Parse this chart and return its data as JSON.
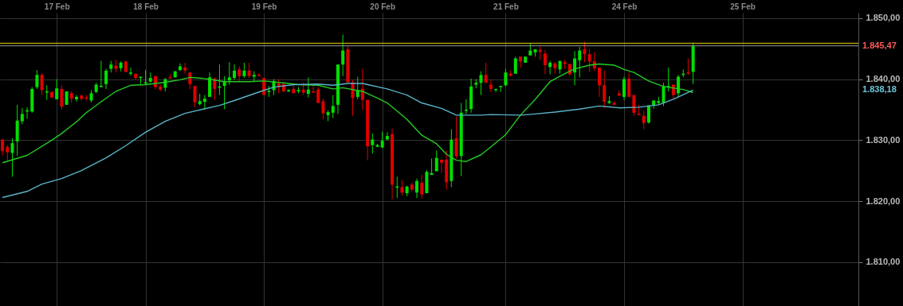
{
  "chart_data": {
    "type": "candlestick",
    "categories": [
      null,
      null,
      null,
      null,
      null,
      null,
      null,
      null,
      null,
      null,
      null,
      "17 Feb",
      null,
      null,
      null,
      null,
      null,
      null,
      null,
      null,
      null,
      null,
      null,
      null,
      null,
      null,
      null,
      null,
      null,
      "18 Feb",
      null,
      null,
      null,
      null,
      null,
      null,
      null,
      null,
      null,
      null,
      null,
      null,
      null,
      null,
      null,
      null,
      null,
      null,
      null,
      null,
      null,
      null,
      null,
      "19 Feb",
      null,
      null,
      null,
      null,
      null,
      null,
      null,
      null,
      null,
      null,
      null,
      null,
      null,
      null,
      null,
      null,
      null,
      null,
      null,
      null,
      null,
      null,
      null,
      "20 Feb",
      null,
      null,
      null,
      null,
      null,
      null,
      null,
      null,
      null,
      null,
      null,
      null,
      null,
      null,
      null,
      null,
      null,
      null,
      null,
      null,
      null,
      null,
      null,
      null,
      "21 Feb",
      null,
      null,
      null,
      null,
      null,
      null,
      null,
      null,
      null,
      null,
      null,
      null,
      null,
      null,
      null,
      null,
      null,
      null,
      null,
      null,
      null,
      null,
      null,
      "24 Feb",
      null,
      null,
      null,
      null,
      null,
      null,
      null,
      null,
      null,
      null,
      null,
      null,
      null,
      null,
      null,
      null,
      null,
      null,
      null,
      null,
      null,
      null,
      null,
      "25 Feb",
      null,
      null,
      null,
      null,
      null,
      null,
      null,
      null,
      null,
      null,
      null,
      null,
      null,
      null,
      null,
      null,
      null,
      null,
      null,
      null,
      null,
      null,
      null
    ],
    "ohlc": [
      [
        1830.1,
        1830.2,
        1827.5,
        1828.2
      ],
      [
        1828.9,
        1829.2,
        1826.7,
        1828.0
      ],
      [
        1827.9,
        1830.3,
        1824.0,
        1829.5
      ],
      [
        1829.8,
        1835.8,
        1827.4,
        1833.2
      ],
      [
        1833.1,
        1835.3,
        1832.6,
        1834.3
      ],
      [
        1834.7,
        1835.4,
        1833.5,
        1834.9
      ],
      [
        1834.7,
        1838.7,
        1834.5,
        1838.4
      ],
      [
        1838.7,
        1841.5,
        1838.4,
        1840.7
      ],
      [
        1840.7,
        1841.0,
        1837.4,
        1838.2
      ],
      [
        1837.8,
        1839.0,
        1836.6,
        1838.0
      ],
      [
        1837.9,
        1838.0,
        1836.9,
        1837.0
      ],
      [
        1836.7,
        1840.0,
        1836.7,
        1838.5
      ],
      [
        1838.4,
        1839.0,
        1835.0,
        1835.5
      ],
      [
        1835.8,
        1838.0,
        1835.8,
        1838.0
      ],
      [
        1837.7,
        1838.0,
        1836.1,
        1836.8
      ],
      [
        1836.7,
        1837.4,
        1836.3,
        1837.1
      ],
      [
        1837.3,
        1837.5,
        1836.5,
        1836.8
      ],
      [
        1837.0,
        1837.4,
        1836.5,
        1836.8
      ],
      [
        1836.5,
        1838.2,
        1836.2,
        1837.7
      ],
      [
        1837.9,
        1839.4,
        1837.7,
        1839.1
      ],
      [
        1838.7,
        1843.0,
        1838.7,
        1838.9
      ],
      [
        1839.2,
        1841.7,
        1838.4,
        1841.4
      ],
      [
        1841.7,
        1843.0,
        1841.1,
        1842.4
      ],
      [
        1842.2,
        1843.2,
        1841.1,
        1841.7
      ],
      [
        1841.8,
        1842.9,
        1841.3,
        1842.7
      ],
      [
        1842.9,
        1843.0,
        1841.1,
        1841.2
      ],
      [
        1840.9,
        1841.9,
        1840.6,
        1841.1
      ],
      [
        1840.9,
        1840.9,
        1839.9,
        1840.2
      ],
      [
        1840.2,
        1840.4,
        1839.2,
        1840.4
      ],
      [
        1839.3,
        1841.5,
        1839.2,
        1839.5
      ],
      [
        1839.6,
        1841.1,
        1839.4,
        1840.2
      ],
      [
        1840.5,
        1840.5,
        1838.3,
        1838.7
      ],
      [
        1838.8,
        1839.1,
        1838.0,
        1838.3
      ],
      [
        1838.6,
        1840.2,
        1838.0,
        1840.0
      ],
      [
        1840.3,
        1840.8,
        1840.1,
        1840.1
      ],
      [
        1840.3,
        1841.3,
        1840.3,
        1841.3
      ],
      [
        1841.5,
        1842.6,
        1841.3,
        1842.1
      ],
      [
        1841.9,
        1842.7,
        1840.9,
        1841.4
      ],
      [
        1841.1,
        1841.1,
        1838.4,
        1839.2
      ],
      [
        1838.9,
        1838.9,
        1835.4,
        1836.2
      ],
      [
        1835.9,
        1837.6,
        1835.7,
        1836.4
      ],
      [
        1836.3,
        1837.4,
        1835.0,
        1836.8
      ],
      [
        1837.1,
        1841.1,
        1837.1,
        1840.3
      ],
      [
        1840.1,
        1840.3,
        1836.6,
        1838.4
      ],
      [
        1838.6,
        1842.4,
        1837.4,
        1838.8
      ],
      [
        1838.9,
        1840.5,
        1835.1,
        1839.7
      ],
      [
        1839.8,
        1842.8,
        1839.1,
        1840.3
      ],
      [
        1840.2,
        1842.4,
        1839.9,
        1841.4
      ],
      [
        1841.6,
        1842.1,
        1839.6,
        1840.5
      ],
      [
        1840.5,
        1842.7,
        1840.2,
        1841.4
      ],
      [
        1841.4,
        1842.7,
        1840.2,
        1840.5
      ],
      [
        1840.4,
        1841.3,
        1839.7,
        1840.7
      ],
      [
        1840.7,
        1841.0,
        1840.5,
        1840.5
      ],
      [
        1840.2,
        1840.2,
        1837.4,
        1837.4
      ],
      [
        1837.9,
        1838.9,
        1837.1,
        1838.1
      ],
      [
        1838.2,
        1840.0,
        1837.4,
        1839.7
      ],
      [
        1839.3,
        1840.0,
        1837.7,
        1838.7
      ],
      [
        1839.2,
        1839.2,
        1837.9,
        1838.0
      ],
      [
        1838.0,
        1838.4,
        1837.9,
        1838.2
      ],
      [
        1838.4,
        1839.0,
        1837.7,
        1837.7
      ],
      [
        1838.0,
        1838.7,
        1837.7,
        1838.2
      ],
      [
        1838.3,
        1839.4,
        1837.4,
        1837.8
      ],
      [
        1837.6,
        1840.3,
        1837.0,
        1838.3
      ],
      [
        1838.0,
        1839.0,
        1837.8,
        1837.8
      ],
      [
        1838.3,
        1838.7,
        1836.1,
        1836.1
      ],
      [
        1836.4,
        1836.8,
        1833.4,
        1834.4
      ],
      [
        1834.1,
        1834.9,
        1833.1,
        1834.6
      ],
      [
        1834.5,
        1837.4,
        1833.6,
        1835.6
      ],
      [
        1835.8,
        1842.4,
        1834.3,
        1842.4
      ],
      [
        1842.4,
        1847.3,
        1840.5,
        1844.7
      ],
      [
        1844.9,
        1845.4,
        1839.5,
        1839.5
      ],
      [
        1839.5,
        1839.9,
        1834.0,
        1836.9
      ],
      [
        1837.1,
        1840.4,
        1836.7,
        1838.2
      ],
      [
        1838.4,
        1841.7,
        1834.9,
        1836.6
      ],
      [
        1836.6,
        1836.6,
        1826.7,
        1829.0
      ],
      [
        1829.2,
        1831.1,
        1827.8,
        1830.1
      ],
      [
        1828.9,
        1829.4,
        1828.9,
        1829.2
      ],
      [
        1828.8,
        1831.4,
        1828.7,
        1829.9
      ],
      [
        1830.1,
        1831.3,
        1830.1,
        1830.7
      ],
      [
        1831.0,
        1831.9,
        1820.3,
        1822.7
      ],
      [
        1822.2,
        1824.0,
        1820.5,
        1822.4
      ],
      [
        1822.3,
        1823.4,
        1820.9,
        1821.4
      ],
      [
        1821.3,
        1822.5,
        1820.8,
        1822.4
      ],
      [
        1822.7,
        1823.0,
        1821.6,
        1821.9
      ],
      [
        1821.4,
        1823.7,
        1820.5,
        1823.3
      ],
      [
        1823.0,
        1824.3,
        1820.4,
        1821.1
      ],
      [
        1821.3,
        1825.1,
        1821.3,
        1824.8
      ],
      [
        1824.3,
        1827.0,
        1824.3,
        1824.6
      ],
      [
        1824.9,
        1828.3,
        1824.9,
        1827.1
      ],
      [
        1826.8,
        1826.8,
        1824.6,
        1826.3
      ],
      [
        1826.8,
        1828.3,
        1821.9,
        1823.1
      ],
      [
        1823.3,
        1831.8,
        1822.3,
        1830.1
      ],
      [
        1830.3,
        1833.9,
        1827.0,
        1827.4
      ],
      [
        1827.4,
        1836.1,
        1824.1,
        1834.5
      ],
      [
        1834.8,
        1836.7,
        1834.3,
        1835.0
      ],
      [
        1835.1,
        1840.1,
        1834.5,
        1838.8
      ],
      [
        1839.1,
        1840.0,
        1838.5,
        1839.4
      ],
      [
        1839.4,
        1841.3,
        1837.4,
        1840.7
      ],
      [
        1840.7,
        1842.7,
        1839.4,
        1839.4
      ],
      [
        1839.1,
        1839.9,
        1837.9,
        1838.4
      ],
      [
        1838.2,
        1838.4,
        1837.9,
        1838.4
      ],
      [
        1838.7,
        1838.9,
        1837.9,
        1838.9
      ],
      [
        1839.0,
        1841.7,
        1838.8,
        1841.1
      ],
      [
        1840.9,
        1841.4,
        1840.4,
        1840.6
      ],
      [
        1840.9,
        1843.7,
        1840.9,
        1843.4
      ],
      [
        1843.7,
        1843.7,
        1841.9,
        1842.9
      ],
      [
        1842.7,
        1843.7,
        1842.7,
        1843.7
      ],
      [
        1843.9,
        1845.9,
        1843.9,
        1844.7
      ],
      [
        1844.4,
        1844.9,
        1843.7,
        1844.9
      ],
      [
        1844.8,
        1845.3,
        1843.2,
        1844.5
      ],
      [
        1844.2,
        1844.8,
        1840.8,
        1842.3
      ],
      [
        1842.0,
        1843.0,
        1840.8,
        1842.7
      ],
      [
        1842.6,
        1842.8,
        1840.9,
        1841.8
      ],
      [
        1841.6,
        1843.0,
        1840.9,
        1843.0
      ],
      [
        1842.8,
        1843.2,
        1841.7,
        1842.5
      ],
      [
        1842.5,
        1842.5,
        1840.5,
        1840.8
      ],
      [
        1841.1,
        1844.6,
        1839.0,
        1843.4
      ],
      [
        1843.1,
        1845.3,
        1840.3,
        1844.7
      ],
      [
        1844.9,
        1846.1,
        1842.8,
        1844.1
      ],
      [
        1844.1,
        1845.0,
        1841.2,
        1842.9
      ],
      [
        1842.9,
        1844.4,
        1841.3,
        1841.8
      ],
      [
        1841.9,
        1841.9,
        1837.1,
        1839.0
      ],
      [
        1839.0,
        1841.4,
        1835.3,
        1836.3
      ],
      [
        1836.1,
        1837.2,
        1835.9,
        1836.4
      ],
      [
        1836.1,
        1836.4,
        1835.8,
        1835.8
      ],
      [
        1837.7,
        1838.2,
        1837.3,
        1837.3
      ],
      [
        1837.1,
        1840.4,
        1836.6,
        1840.0
      ],
      [
        1840.1,
        1841.1,
        1837.1,
        1837.1
      ],
      [
        1837.4,
        1837.4,
        1834.0,
        1834.5
      ],
      [
        1834.3,
        1835.8,
        1834.1,
        1834.1
      ],
      [
        1834.0,
        1834.8,
        1831.8,
        1832.8
      ],
      [
        1832.9,
        1835.7,
        1832.7,
        1835.7
      ],
      [
        1835.7,
        1836.5,
        1835.1,
        1836.5
      ],
      [
        1836.1,
        1837.1,
        1835.8,
        1836.4
      ],
      [
        1836.1,
        1839.4,
        1835.6,
        1838.9
      ],
      [
        1838.7,
        1841.9,
        1838.0,
        1838.9
      ],
      [
        1839.1,
        1839.1,
        1836.7,
        1837.4
      ],
      [
        1837.7,
        1840.7,
        1837.1,
        1840.4
      ],
      [
        1840.7,
        1841.6,
        1840.3,
        1840.9
      ],
      [
        1841.1,
        1843.4,
        1840.7,
        1840.9
      ],
      [
        1841.2,
        1846.0,
        1839.2,
        1845.47
      ],
      null,
      null,
      null,
      null,
      null,
      null,
      null,
      null,
      null,
      null,
      null,
      null,
      null,
      null,
      null,
      null,
      null,
      null,
      null,
      null,
      null,
      null,
      null,
      null,
      null,
      null,
      null,
      null,
      null,
      null,
      null,
      null,
      null
    ],
    "colors": [
      "#e00000",
      "#e00000",
      "#00e000",
      "#00e000",
      "#00e000",
      "#00e000",
      "#00e000",
      "#00e000",
      "#e00000",
      "#00e000",
      "#e00000",
      "#00e000",
      "#e00000",
      "#00e000",
      "#e00000",
      "#00e000",
      "#e00000",
      "#e00000",
      "#00e000",
      "#00e000",
      "#00e000",
      "#00e000",
      "#00e000",
      "#e00000",
      "#00e000",
      "#e00000",
      "#00e000",
      "#e00000",
      "#00e000",
      "#00e000",
      "#00e000",
      "#e00000",
      "#e00000",
      "#00e000",
      "#e00000",
      "#00e000",
      "#00e000",
      "#e00000",
      "#e00000",
      "#e00000",
      "#00e000",
      "#00e000",
      "#00e000",
      "#e00000",
      "#00e000",
      "#00e000",
      "#00e000",
      "#00e000",
      "#e00000",
      "#00e000",
      "#e00000",
      "#00e000",
      "#e00000",
      "#e00000",
      "#00e000",
      "#00e000",
      "#e00000",
      "#e00000",
      "#00e000",
      "#e00000",
      "#00e000",
      "#e00000",
      "#00e000",
      "#e00000",
      "#e00000",
      "#e00000",
      "#00e000",
      "#00e000",
      "#00e000",
      "#00e000",
      "#e00000",
      "#e00000",
      "#00e000",
      "#e00000",
      "#e00000",
      "#00e000",
      "#00e000",
      "#00e000",
      "#00e000",
      "#e00000",
      "#00e000",
      "#e00000",
      "#00e000",
      "#e00000",
      "#00e000",
      "#e00000",
      "#00e000",
      "#00e000",
      "#00e000",
      "#e00000",
      "#e00000",
      "#00e000",
      "#e00000",
      "#00e000",
      "#00e000",
      "#00e000",
      "#00e000",
      "#00e000",
      "#e00000",
      "#e00000",
      "#00e000",
      "#00e000",
      "#00e000",
      "#e00000",
      "#00e000",
      "#e00000",
      "#00e000",
      "#00e000",
      "#00e000",
      "#e00000",
      "#e00000",
      "#00e000",
      "#e00000",
      "#00e000",
      "#e00000",
      "#e00000",
      "#00e000",
      "#00e000",
      "#e00000",
      "#e00000",
      "#e00000",
      "#e00000",
      "#e00000",
      "#00e000",
      "#e00000",
      "#e00000",
      "#00e000",
      "#e00000",
      "#e00000",
      "#e00000",
      "#e00000",
      "#00e000",
      "#00e000",
      "#00e000",
      "#00e000",
      "#00e000",
      "#e00000",
      "#00e000",
      "#00e000",
      "#e00000",
      "#00e000",
      null,
      null,
      null,
      null,
      null,
      null,
      null,
      null,
      null,
      null,
      null,
      null,
      null,
      null,
      null,
      null,
      null,
      null,
      null,
      null,
      null,
      null,
      null,
      null,
      null,
      null,
      null,
      null,
      null,
      null,
      null,
      null,
      null
    ],
    "series": [
      {
        "type": "line",
        "color": "#22cc22",
        "values": [
          1826.3,
          null,
          null,
          null,
          null,
          1827.5,
          null,
          null,
          null,
          null,
          1830.0,
          null,
          1831.1,
          null,
          null,
          1833.0,
          null,
          1834.5,
          null,
          null,
          1836.3,
          null,
          null,
          1838.0,
          null,
          null,
          1839.0,
          null,
          null,
          1839.1,
          null,
          null,
          null,
          1839.5,
          null,
          null,
          1839.9,
          null,
          1840.3,
          null,
          null,
          1840.1,
          null,
          null,
          null,
          1839.6,
          null,
          null,
          null,
          null,
          1839.6,
          null,
          null,
          1839.7,
          null,
          null,
          null,
          1839.4,
          null,
          null,
          1839.1,
          null,
          null,
          null,
          1839.0,
          null,
          null,
          1838.4,
          null,
          1838.6,
          null,
          null,
          null,
          1838.0,
          null,
          null,
          1836.9,
          null,
          1836.1,
          null,
          null,
          null,
          1833.4,
          null,
          null,
          1830.8,
          null,
          null,
          1829.4,
          null,
          1827.7,
          null,
          1826.7,
          null,
          1826.5,
          null,
          null,
          1827.6,
          null,
          1828.9,
          null,
          null,
          1830.9,
          null,
          null,
          1834.1,
          null,
          null,
          1836.7,
          null,
          null,
          1839.6,
          null,
          null,
          1840.9,
          null,
          1841.7,
          null,
          null,
          1842.3,
          null,
          1842.5,
          null,
          null,
          1842.3,
          null,
          1841.6,
          null,
          1841.1,
          null,
          null,
          1839.7,
          null,
          null,
          1838.8,
          null,
          null,
          null,
          1838.3,
          null,
          1837.8,
          null,
          null,
          null,
          null,
          null,
          null,
          null,
          null,
          null,
          null,
          null,
          null,
          null,
          null,
          null,
          null,
          null,
          null,
          null,
          null,
          null,
          null,
          null,
          null,
          null,
          null,
          null,
          null,
          null,
          null,
          null,
          null,
          null
        ]
      },
      {
        "type": "line",
        "color": "#5ab4c8",
        "values": [
          1820.6,
          null,
          null,
          null,
          null,
          1821.6,
          null,
          null,
          1822.8,
          null,
          null,
          null,
          1823.7,
          null,
          null,
          null,
          1825.0,
          null,
          null,
          null,
          null,
          1827.1,
          null,
          null,
          null,
          1829.1,
          null,
          null,
          null,
          1831.3,
          null,
          null,
          null,
          1833.1,
          null,
          null,
          null,
          1834.4,
          null,
          null,
          null,
          null,
          null,
          null,
          1835.7,
          null,
          null,
          1836.5,
          null,
          null,
          null,
          null,
          1837.9,
          null,
          null,
          1838.7,
          null,
          null,
          null,
          1839.1,
          null,
          null,
          null,
          null,
          1839.2,
          null,
          null,
          1839.0,
          null,
          null,
          1839.3,
          null,
          null,
          1839.3,
          null,
          null,
          null,
          null,
          1838.4,
          null,
          null,
          null,
          1837.4,
          null,
          null,
          1836.1,
          null,
          null,
          null,
          1835.2,
          null,
          null,
          1834.1,
          null,
          null,
          null,
          null,
          1834.1,
          null,
          1834.2,
          null,
          null,
          null,
          null,
          null,
          1834.1,
          null,
          null,
          1834.3,
          null,
          null,
          null,
          1834.6,
          null,
          null,
          null,
          null,
          1835.1,
          null,
          null,
          null,
          1835.6,
          null,
          null,
          null,
          1835.3,
          null,
          null,
          null,
          1835.4,
          null,
          null,
          null,
          1835.8,
          null,
          null,
          1836.7,
          null,
          null,
          null,
          1838.2,
          null,
          null,
          null,
          null,
          null,
          null,
          null,
          null,
          null,
          null,
          null,
          null,
          null,
          null,
          null,
          null,
          null,
          null,
          null,
          null,
          null,
          null,
          null,
          null,
          null,
          null,
          null,
          null,
          null,
          null,
          null,
          null,
          null
        ]
      }
    ],
    "ref_lines": [
      {
        "axis": "y",
        "value": 1845.9,
        "color": "#e6d200"
      },
      {
        "axis": "y",
        "value": 1845.47,
        "label": "1.845,47",
        "color": "#9a9a9a"
      }
    ],
    "annotations": [
      "1.838,18"
    ],
    "ylim": [
      1802.8,
      1850.9
    ],
    "yticks": [
      {
        "value": 1810,
        "label": "1.810,00"
      },
      {
        "value": 1820,
        "label": "1.820,00"
      },
      {
        "value": 1830,
        "label": "1.830,00"
      },
      {
        "value": 1840,
        "label": "1.840,00"
      },
      {
        "value": 1850,
        "label": "1.850,00"
      }
    ],
    "grid": true
  }
}
